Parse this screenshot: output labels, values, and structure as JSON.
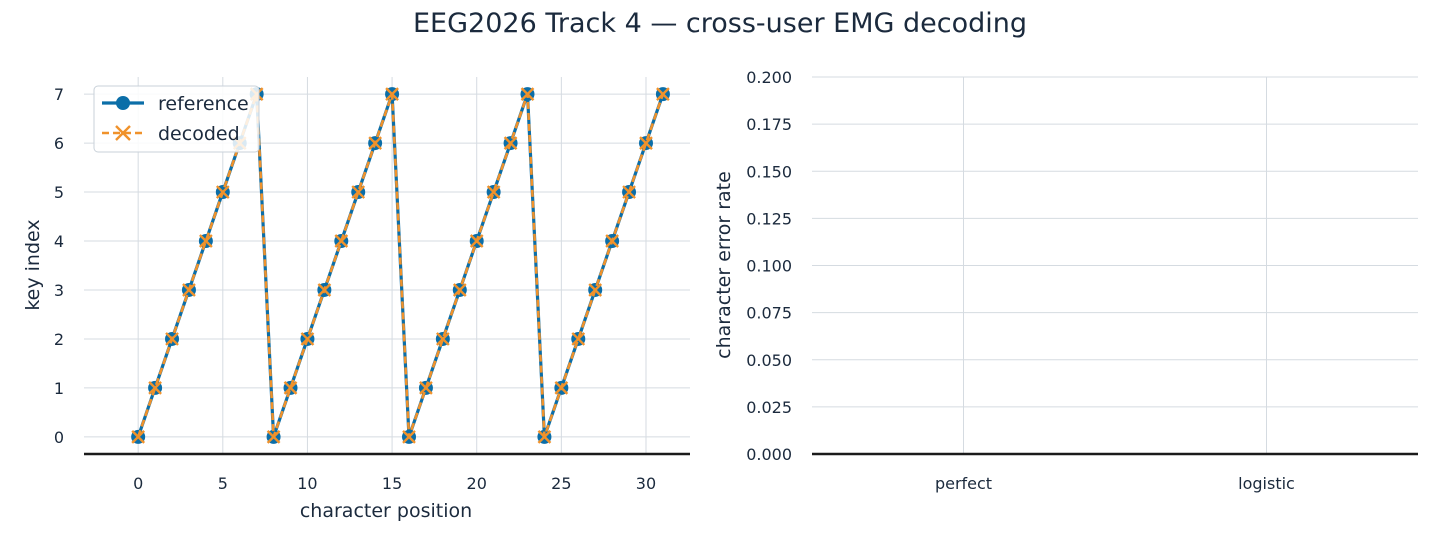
{
  "figure": {
    "title": "EEG2026 Track 4 — cross-user EMG decoding"
  },
  "colors": {
    "reference": "#0b6ea8",
    "decoded": "#f0922b",
    "text": "#1b2a3d",
    "grid": "#d5dbe1",
    "axis": "#1b1b1b"
  },
  "chart_data": [
    {
      "type": "line",
      "xlabel": "character position",
      "ylabel": "key index",
      "xlim": [
        -3.2,
        32.6
      ],
      "ylim": [
        -0.35,
        7.35
      ],
      "xticks": [
        0,
        5,
        10,
        15,
        20,
        25,
        30
      ],
      "yticks": [
        0,
        1,
        2,
        3,
        4,
        5,
        6,
        7
      ],
      "grid": true,
      "legend": "top-left",
      "x": [
        0,
        1,
        2,
        3,
        4,
        5,
        6,
        7,
        8,
        9,
        10,
        11,
        12,
        13,
        14,
        15,
        16,
        17,
        18,
        19,
        20,
        21,
        22,
        23,
        24,
        25,
        26,
        27,
        28,
        29,
        30,
        31
      ],
      "series": [
        {
          "name": "reference",
          "marker": "circle",
          "linestyle": "solid",
          "values": [
            0,
            1,
            2,
            3,
            4,
            5,
            6,
            7,
            0,
            1,
            2,
            3,
            4,
            5,
            6,
            7,
            0,
            1,
            2,
            3,
            4,
            5,
            6,
            7,
            0,
            1,
            2,
            3,
            4,
            5,
            6,
            7
          ]
        },
        {
          "name": "decoded",
          "marker": "x",
          "linestyle": "dashed",
          "values": [
            0,
            1,
            2,
            3,
            4,
            5,
            6,
            7,
            0,
            1,
            2,
            3,
            4,
            5,
            6,
            7,
            0,
            1,
            2,
            3,
            4,
            5,
            6,
            7,
            0,
            1,
            2,
            3,
            4,
            5,
            6,
            7
          ]
        }
      ]
    },
    {
      "type": "bar",
      "xlabel": "",
      "ylabel": "character error rate",
      "categories": [
        "perfect",
        "logistic"
      ],
      "values": [
        0.0,
        0.0
      ],
      "ylim": [
        0.0,
        0.2
      ],
      "yticks": [
        "0.000",
        "0.025",
        "0.050",
        "0.075",
        "0.100",
        "0.125",
        "0.150",
        "0.175",
        "0.200"
      ],
      "grid": true
    }
  ]
}
